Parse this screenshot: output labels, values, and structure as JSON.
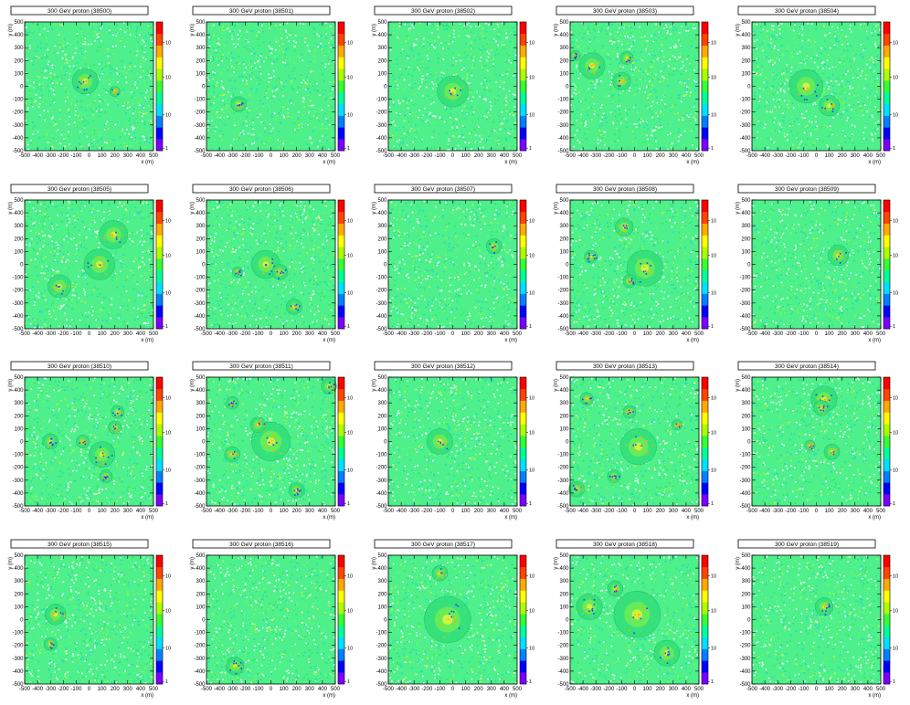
{
  "palette": [
    "#7a00ff",
    "#0000ff",
    "#0080ff",
    "#00e0ff",
    "#00ff99",
    "#33ff33",
    "#aaff00",
    "#ffff00",
    "#ffaa00",
    "#ff4400",
    "#ff0000"
  ],
  "colorbar_ticks": [
    "10",
    "10",
    "10",
    "1"
  ],
  "chart_data": [
    {
      "type": "heatmap",
      "title": "300 GeV proton (38500)",
      "xlabel": "x (m)",
      "ylabel": "y (m)",
      "xlim": [
        -500,
        500
      ],
      "ylim": [
        -500,
        500
      ],
      "xticks": [
        -500,
        -400,
        -300,
        -200,
        -100,
        0,
        100,
        200,
        300,
        400,
        500
      ],
      "yticks": [
        -500,
        -400,
        -300,
        -200,
        -100,
        0,
        100,
        200,
        300,
        400,
        500
      ],
      "clusters": [
        {
          "x": -30,
          "y": 40,
          "r": 100
        },
        {
          "x": 200,
          "y": -40,
          "r": 40
        }
      ]
    },
    {
      "type": "heatmap",
      "title": "300 GeV proton (38501)",
      "xlabel": "x (m)",
      "ylabel": "y (m)",
      "xlim": [
        -500,
        500
      ],
      "ylim": [
        -500,
        500
      ],
      "xticks": [
        -500,
        -400,
        -300,
        -200,
        -100,
        0,
        100,
        200,
        300,
        400,
        500
      ],
      "yticks": [
        -500,
        -400,
        -300,
        -200,
        -100,
        0,
        100,
        200,
        300,
        400,
        500
      ],
      "clusters": [
        {
          "x": -250,
          "y": -140,
          "r": 60
        }
      ]
    },
    {
      "type": "heatmap",
      "title": "300 GeV proton (38502)",
      "xlabel": "x (m)",
      "ylabel": "y (m)",
      "xlim": [
        -500,
        500
      ],
      "ylim": [
        -500,
        500
      ],
      "xticks": [
        -500,
        -400,
        -300,
        -200,
        -100,
        0,
        100,
        200,
        300,
        400,
        500
      ],
      "yticks": [
        -500,
        -400,
        -300,
        -200,
        -100,
        0,
        100,
        200,
        300,
        400,
        500
      ],
      "clusters": [
        {
          "x": 0,
          "y": -40,
          "r": 120
        }
      ]
    },
    {
      "type": "heatmap",
      "title": "300 GeV proton (38503)",
      "xlabel": "x (m)",
      "ylabel": "y (m)",
      "xlim": [
        -500,
        500
      ],
      "ylim": [
        -500,
        500
      ],
      "xticks": [
        -500,
        -400,
        -300,
        -200,
        -100,
        0,
        100,
        200,
        300,
        400,
        500
      ],
      "yticks": [
        -500,
        -400,
        -300,
        -200,
        -100,
        0,
        100,
        200,
        300,
        400,
        500
      ],
      "clusters": [
        {
          "x": -330,
          "y": 160,
          "r": 100
        },
        {
          "x": -60,
          "y": 220,
          "r": 50
        },
        {
          "x": -100,
          "y": 40,
          "r": 70
        },
        {
          "x": -460,
          "y": 240,
          "r": 40
        }
      ]
    },
    {
      "type": "heatmap",
      "title": "300 GeV proton (38504)",
      "xlabel": "x (m)",
      "ylabel": "y (m)",
      "xlim": [
        -500,
        500
      ],
      "ylim": [
        -500,
        500
      ],
      "xticks": [
        -500,
        -400,
        -300,
        -200,
        -100,
        0,
        100,
        200,
        300,
        400,
        500
      ],
      "yticks": [
        -500,
        -400,
        -300,
        -200,
        -100,
        0,
        100,
        200,
        300,
        400,
        500
      ],
      "clusters": [
        {
          "x": -80,
          "y": 0,
          "r": 130
        },
        {
          "x": 100,
          "y": -150,
          "r": 80
        }
      ]
    },
    {
      "type": "heatmap",
      "title": "300 GeV proton (38505)",
      "xlabel": "x (m)",
      "ylabel": "y (m)",
      "xlim": [
        -500,
        500
      ],
      "ylim": [
        -500,
        500
      ],
      "xticks": [
        -500,
        -400,
        -300,
        -200,
        -100,
        0,
        100,
        200,
        300,
        400,
        500
      ],
      "yticks": [
        -500,
        -400,
        -300,
        -200,
        -100,
        0,
        100,
        200,
        300,
        400,
        500
      ],
      "clusters": [
        {
          "x": 190,
          "y": 230,
          "r": 110
        },
        {
          "x": 80,
          "y": 0,
          "r": 120
        },
        {
          "x": -230,
          "y": -170,
          "r": 90
        }
      ]
    },
    {
      "type": "heatmap",
      "title": "300 GeV proton (38506)",
      "xlabel": "x (m)",
      "ylabel": "y (m)",
      "xlim": [
        -500,
        500
      ],
      "ylim": [
        -500,
        500
      ],
      "xticks": [
        -500,
        -400,
        -300,
        -200,
        -100,
        0,
        100,
        200,
        300,
        400,
        500
      ],
      "yticks": [
        -500,
        -400,
        -300,
        -200,
        -100,
        0,
        100,
        200,
        300,
        400,
        500
      ],
      "clusters": [
        {
          "x": -40,
          "y": 0,
          "r": 110
        },
        {
          "x": 70,
          "y": -60,
          "r": 60
        },
        {
          "x": -260,
          "y": -60,
          "r": 40
        },
        {
          "x": 180,
          "y": -330,
          "r": 60
        }
      ]
    },
    {
      "type": "heatmap",
      "title": "300 GeV proton (38507)",
      "xlabel": "x (m)",
      "ylabel": "y (m)",
      "xlim": [
        -500,
        500
      ],
      "ylim": [
        -500,
        500
      ],
      "xticks": [
        -500,
        -400,
        -300,
        -200,
        -100,
        0,
        100,
        200,
        300,
        400,
        500
      ],
      "yticks": [
        -500,
        -400,
        -300,
        -200,
        -100,
        0,
        100,
        200,
        300,
        400,
        500
      ],
      "clusters": [
        {
          "x": 320,
          "y": 140,
          "r": 60
        }
      ]
    },
    {
      "type": "heatmap",
      "title": "300 GeV proton (38508)",
      "xlabel": "x (m)",
      "ylabel": "y (m)",
      "xlim": [
        -500,
        500
      ],
      "ylim": [
        -500,
        500
      ],
      "xticks": [
        -500,
        -400,
        -300,
        -200,
        -100,
        0,
        100,
        200,
        300,
        400,
        500
      ],
      "yticks": [
        -500,
        -400,
        -300,
        -200,
        -100,
        0,
        100,
        200,
        300,
        400,
        500
      ],
      "clusters": [
        {
          "x": 80,
          "y": -30,
          "r": 140
        },
        {
          "x": -80,
          "y": 290,
          "r": 70
        },
        {
          "x": -340,
          "y": 60,
          "r": 50
        },
        {
          "x": -40,
          "y": -130,
          "r": 50
        }
      ]
    },
    {
      "type": "heatmap",
      "title": "300 GeV proton (38509)",
      "xlabel": "x (m)",
      "ylabel": "y (m)",
      "xlim": [
        -500,
        500
      ],
      "ylim": [
        -500,
        500
      ],
      "xticks": [
        -500,
        -400,
        -300,
        -200,
        -100,
        0,
        100,
        200,
        300,
        400,
        500
      ],
      "yticks": [
        -500,
        -400,
        -300,
        -200,
        -100,
        0,
        100,
        200,
        300,
        400,
        500
      ],
      "clusters": [
        {
          "x": 170,
          "y": 70,
          "r": 80
        }
      ]
    },
    {
      "type": "heatmap",
      "title": "300 GeV proton (38510)",
      "xlabel": "x (m)",
      "ylabel": "y (m)",
      "xlim": [
        -500,
        500
      ],
      "ylim": [
        -500,
        500
      ],
      "xticks": [
        -500,
        -400,
        -300,
        -200,
        -100,
        0,
        100,
        200,
        300,
        400,
        500
      ],
      "yticks": [
        -500,
        -400,
        -300,
        -200,
        -100,
        0,
        100,
        200,
        300,
        400,
        500
      ],
      "clusters": [
        {
          "x": -300,
          "y": 0,
          "r": 60
        },
        {
          "x": 220,
          "y": 230,
          "r": 50
        },
        {
          "x": 200,
          "y": 110,
          "r": 50
        },
        {
          "x": 100,
          "y": -100,
          "r": 100
        },
        {
          "x": -50,
          "y": 0,
          "r": 50
        },
        {
          "x": 130,
          "y": -270,
          "r": 50
        }
      ]
    },
    {
      "type": "heatmap",
      "title": "300 GeV proton (38511)",
      "xlabel": "x (m)",
      "ylabel": "y (m)",
      "xlim": [
        -500,
        500
      ],
      "ylim": [
        -500,
        500
      ],
      "xticks": [
        -500,
        -400,
        -300,
        -200,
        -100,
        0,
        100,
        200,
        300,
        400,
        500
      ],
      "yticks": [
        -500,
        -400,
        -300,
        -200,
        -100,
        0,
        100,
        200,
        300,
        400,
        500
      ],
      "clusters": [
        {
          "x": 0,
          "y": 0,
          "r": 150
        },
        {
          "x": -100,
          "y": 130,
          "r": 60
        },
        {
          "x": -300,
          "y": 300,
          "r": 50
        },
        {
          "x": 450,
          "y": 430,
          "r": 60
        },
        {
          "x": -300,
          "y": -100,
          "r": 60
        },
        {
          "x": 200,
          "y": -380,
          "r": 60
        }
      ]
    },
    {
      "type": "heatmap",
      "title": "300 GeV proton (38512)",
      "xlabel": "x (m)",
      "ylabel": "y (m)",
      "xlim": [
        -500,
        500
      ],
      "ylim": [
        -500,
        500
      ],
      "xticks": [
        -500,
        -400,
        -300,
        -200,
        -100,
        0,
        100,
        200,
        300,
        400,
        500
      ],
      "yticks": [
        -500,
        -400,
        -300,
        -200,
        -100,
        0,
        100,
        200,
        300,
        400,
        500
      ],
      "clusters": [
        {
          "x": -100,
          "y": 0,
          "r": 100
        }
      ]
    },
    {
      "type": "heatmap",
      "title": "300 GeV proton (38513)",
      "xlabel": "x (m)",
      "ylabel": "y (m)",
      "xlim": [
        -500,
        500
      ],
      "ylim": [
        -500,
        500
      ],
      "xticks": [
        -500,
        -400,
        -300,
        -200,
        -100,
        0,
        100,
        200,
        300,
        400,
        500
      ],
      "yticks": [
        -500,
        -400,
        -300,
        -200,
        -100,
        0,
        100,
        200,
        300,
        400,
        500
      ],
      "clusters": [
        {
          "x": 30,
          "y": -40,
          "r": 140
        },
        {
          "x": -40,
          "y": 230,
          "r": 50
        },
        {
          "x": -160,
          "y": -270,
          "r": 50
        },
        {
          "x": -450,
          "y": -370,
          "r": 60
        },
        {
          "x": -370,
          "y": 330,
          "r": 50
        },
        {
          "x": 330,
          "y": 130,
          "r": 40
        }
      ]
    },
    {
      "type": "heatmap",
      "title": "300 GeV proton (38514)",
      "xlabel": "x (m)",
      "ylabel": "y (m)",
      "xlim": [
        -500,
        500
      ],
      "ylim": [
        -500,
        500
      ],
      "xticks": [
        -500,
        -400,
        -300,
        -200,
        -100,
        0,
        100,
        200,
        300,
        400,
        500
      ],
      "yticks": [
        -500,
        -400,
        -300,
        -200,
        -100,
        0,
        100,
        200,
        300,
        400,
        500
      ],
      "clusters": [
        {
          "x": 60,
          "y": 330,
          "r": 100
        },
        {
          "x": 40,
          "y": 260,
          "r": 60
        },
        {
          "x": -50,
          "y": -30,
          "r": 40
        },
        {
          "x": 120,
          "y": -80,
          "r": 60
        }
      ]
    },
    {
      "type": "heatmap",
      "title": "300 GeV proton (38515)",
      "xlabel": "x (m)",
      "ylabel": "y (m)",
      "xlim": [
        -500,
        500
      ],
      "ylim": [
        -500,
        500
      ],
      "xticks": [
        -500,
        -400,
        -300,
        -200,
        -100,
        0,
        100,
        200,
        300,
        400,
        500
      ],
      "yticks": [
        -500,
        -400,
        -300,
        -200,
        -100,
        0,
        100,
        200,
        300,
        400,
        500
      ],
      "clusters": [
        {
          "x": -260,
          "y": 40,
          "r": 80
        },
        {
          "x": -300,
          "y": -190,
          "r": 50
        }
      ]
    },
    {
      "type": "heatmap",
      "title": "300 GeV proton (38516)",
      "xlabel": "x (m)",
      "ylabel": "y (m)",
      "xlim": [
        -500,
        500
      ],
      "ylim": [
        -500,
        500
      ],
      "xticks": [
        -500,
        -400,
        -300,
        -200,
        -100,
        0,
        100,
        200,
        300,
        400,
        500
      ],
      "yticks": [
        -500,
        -400,
        -300,
        -200,
        -100,
        0,
        100,
        200,
        300,
        400,
        500
      ],
      "clusters": [
        {
          "x": -280,
          "y": -360,
          "r": 70
        }
      ]
    },
    {
      "type": "heatmap",
      "title": "300 GeV proton (38517)",
      "xlabel": "x (m)",
      "ylabel": "y (m)",
      "xlim": [
        -500,
        500
      ],
      "ylim": [
        -500,
        500
      ],
      "xticks": [
        -500,
        -400,
        -300,
        -200,
        -100,
        0,
        100,
        200,
        300,
        400,
        500
      ],
      "yticks": [
        -500,
        -400,
        -300,
        -200,
        -100,
        0,
        100,
        200,
        300,
        400,
        500
      ],
      "clusters": [
        {
          "x": -40,
          "y": 0,
          "r": 180
        },
        {
          "x": -100,
          "y": 360,
          "r": 60
        }
      ]
    },
    {
      "type": "heatmap",
      "title": "300 GeV proton (38518)",
      "xlabel": "x (m)",
      "ylabel": "y (m)",
      "xlim": [
        -500,
        500
      ],
      "ylim": [
        -500,
        500
      ],
      "xticks": [
        -500,
        -400,
        -300,
        -200,
        -100,
        0,
        100,
        200,
        300,
        400,
        500
      ],
      "yticks": [
        -500,
        -400,
        -300,
        -200,
        -100,
        0,
        100,
        200,
        300,
        400,
        500
      ],
      "clusters": [
        {
          "x": 20,
          "y": 40,
          "r": 180
        },
        {
          "x": 250,
          "y": -260,
          "r": 100
        },
        {
          "x": -350,
          "y": 100,
          "r": 100
        },
        {
          "x": -150,
          "y": 240,
          "r": 60
        }
      ]
    },
    {
      "type": "heatmap",
      "title": "300 GeV proton (38519)",
      "xlabel": "x (m)",
      "ylabel": "y (m)",
      "xlim": [
        -500,
        500
      ],
      "ylim": [
        -500,
        500
      ],
      "xticks": [
        -500,
        -400,
        -300,
        -200,
        -100,
        0,
        100,
        200,
        300,
        400,
        500
      ],
      "yticks": [
        -500,
        -400,
        -300,
        -200,
        -100,
        0,
        100,
        200,
        300,
        400,
        500
      ],
      "clusters": [
        {
          "x": 60,
          "y": 100,
          "r": 70
        }
      ]
    }
  ]
}
